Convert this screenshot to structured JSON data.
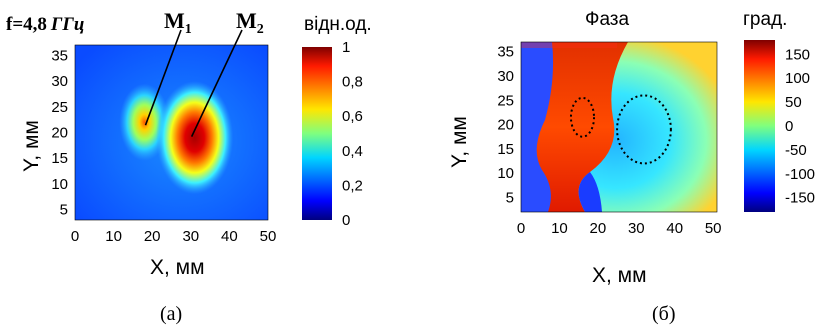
{
  "figure": {
    "panel_a_caption": "(a)",
    "panel_b_caption": "(б)"
  },
  "chart_data": [
    {
      "type": "heatmap",
      "panel": "a",
      "annotation": "f=4,8",
      "annotation_unit": "ГГц",
      "xlabel": "X, мм",
      "ylabel": "Y, мм",
      "xlim": [
        0,
        50
      ],
      "ylim": [
        3,
        37
      ],
      "x_ticks": [
        "0",
        "10",
        "20",
        "30",
        "40",
        "50"
      ],
      "y_ticks": [
        "5",
        "10",
        "15",
        "20",
        "25",
        "30",
        "35"
      ],
      "x_tick_values": [
        0,
        10,
        20,
        30,
        40,
        50
      ],
      "y_tick_values": [
        5,
        10,
        15,
        20,
        25,
        30,
        35
      ],
      "colorbar_label": "відн.од.",
      "colorbar_range": [
        0,
        1
      ],
      "colorbar_ticks": [
        "1",
        "0,8",
        "0,6",
        "0,4",
        "0,2",
        "0"
      ],
      "colorbar_tick_values": [
        1,
        0.8,
        0.6,
        0.4,
        0.2,
        0
      ],
      "colormap": "jet",
      "sources": [
        {
          "label": "M",
          "subscript": "1",
          "x": 18,
          "y": 22,
          "peak": 0.72
        },
        {
          "label": "M",
          "subscript": "2",
          "x": 31,
          "y": 19,
          "peak": 1.0
        }
      ]
    },
    {
      "type": "heatmap",
      "panel": "б",
      "title": "Фаза",
      "xlabel": "X, мм",
      "ylabel": "Y, мм",
      "xlim": [
        0,
        51
      ],
      "ylim": [
        2,
        37
      ],
      "x_ticks": [
        "0",
        "10",
        "20",
        "30",
        "40",
        "50"
      ],
      "y_ticks": [
        "5",
        "10",
        "15",
        "20",
        "25",
        "30",
        "35"
      ],
      "x_tick_values": [
        0,
        10,
        20,
        30,
        40,
        50
      ],
      "y_tick_values": [
        5,
        10,
        15,
        20,
        25,
        30,
        35
      ],
      "colorbar_label": "град.",
      "colorbar_range": [
        -180,
        180
      ],
      "colorbar_ticks": [
        "150",
        "100",
        "50",
        "0",
        "-50",
        "-100",
        "-150"
      ],
      "colorbar_tick_values": [
        150,
        100,
        50,
        0,
        -50,
        -100,
        -150
      ],
      "colormap": "jet",
      "regions": [
        {
          "name": "left",
          "phase": 150
        },
        {
          "name": "right",
          "phase": -30
        }
      ],
      "dotted_ellipses": [
        {
          "cx": 16,
          "cy": 21.5,
          "rx": 3,
          "ry": 4
        },
        {
          "cx": 32,
          "cy": 19,
          "rx": 7,
          "ry": 7
        }
      ]
    }
  ]
}
